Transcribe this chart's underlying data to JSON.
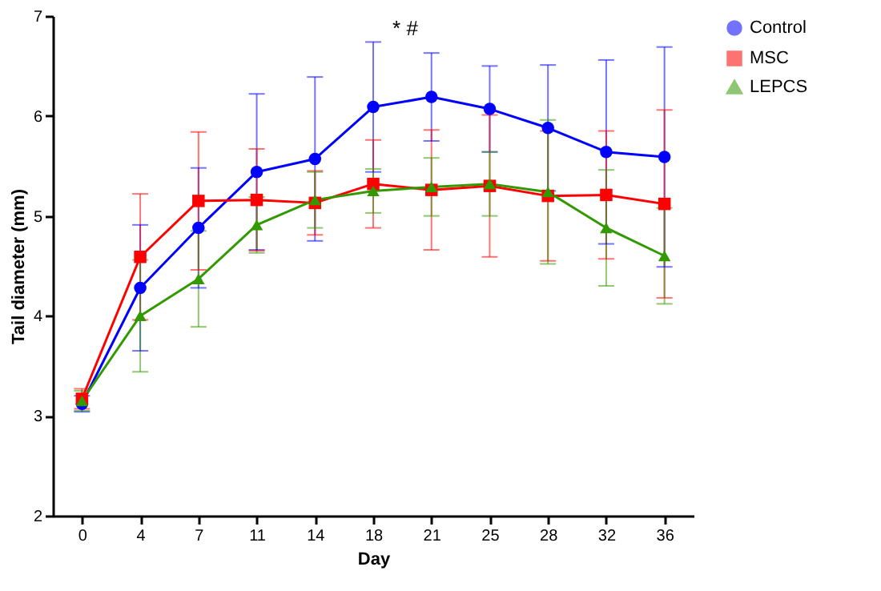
{
  "chart_data": {
    "type": "line",
    "xlabel": "Day",
    "ylabel": "Tail diameter (mm)",
    "categories": [
      "0",
      "4",
      "7",
      "11",
      "14",
      "18",
      "21",
      "25",
      "28",
      "32",
      "36"
    ],
    "ylim": [
      2,
      7
    ],
    "yticks": [
      2,
      3,
      4,
      5,
      6,
      7
    ],
    "grid": false,
    "legend": "right",
    "line_style": "solid",
    "series": [
      {
        "name": "Control",
        "color": "#0000ff",
        "marker": "circle",
        "values": [
          3.12,
          4.28,
          4.88,
          5.44,
          5.57,
          6.09,
          6.19,
          6.07,
          5.88,
          5.64,
          5.59
        ],
        "errors": [
          0.08,
          0.63,
          0.6,
          0.78,
          0.82,
          0.65,
          0.44,
          0.43,
          0.63,
          0.92,
          1.1
        ]
      },
      {
        "name": "MSC",
        "color": "#ff0000",
        "marker": "square",
        "values": [
          3.17,
          4.59,
          5.15,
          5.16,
          5.13,
          5.32,
          5.26,
          5.3,
          5.2,
          5.21,
          5.12
        ],
        "errors": [
          0.1,
          0.63,
          0.69,
          0.51,
          0.32,
          0.44,
          0.6,
          0.71,
          0.65,
          0.64,
          0.94
        ]
      },
      {
        "name": "LEPCS",
        "color": "#339900",
        "marker": "triangle",
        "values": [
          3.15,
          4.0,
          4.37,
          4.91,
          5.16,
          5.25,
          5.29,
          5.32,
          5.24,
          4.88,
          4.6
        ],
        "errors": [
          0.1,
          0.56,
          0.48,
          0.28,
          0.28,
          0.22,
          0.29,
          0.32,
          0.72,
          0.58,
          0.48
        ]
      }
    ],
    "annotations": [
      "* #"
    ]
  }
}
